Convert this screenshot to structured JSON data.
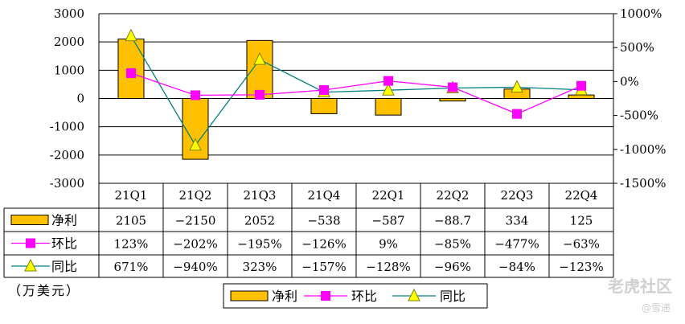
{
  "chart_data": {
    "type": "bar",
    "categories": [
      "21Q1",
      "21Q2",
      "21Q3",
      "21Q4",
      "22Q1",
      "22Q2",
      "22Q3",
      "22Q4"
    ],
    "ylim": [
      -3000,
      3000
    ],
    "y_ticks": [
      "3000",
      "2000",
      "1000",
      "0",
      "-1000",
      "-2000",
      "-3000"
    ],
    "y2lim": [
      -1500,
      1000
    ],
    "y2_ticks": [
      "1000%",
      "500%",
      "0%",
      "-500%",
      "-1000%",
      "-1500%"
    ],
    "grid": true,
    "legend_position": "bottom",
    "series": [
      {
        "name": "净利",
        "kind": "bar",
        "axis": "left",
        "color": "#FFC000",
        "values": [
          2105,
          -2150,
          2052,
          -538,
          -587,
          -88.7,
          334,
          125
        ]
      },
      {
        "name": "环比",
        "kind": "line",
        "axis": "right",
        "color": "#FF00FF",
        "marker": "square",
        "values": [
          123,
          -202,
          -195,
          -126,
          9,
          -85,
          -477,
          -63
        ]
      },
      {
        "name": "同比",
        "kind": "line",
        "axis": "right",
        "color": "#008080",
        "marker": "triangle",
        "marker_color": "#FFFF00",
        "values": [
          671,
          -940,
          323,
          -157,
          -128,
          -96,
          -84,
          -123
        ]
      }
    ],
    "table": [
      {
        "label": "净利",
        "cells": [
          "2105",
          "−2150",
          "2052",
          "−538",
          "−587",
          "−88.7",
          "334",
          "125"
        ]
      },
      {
        "label": "环比",
        "cells": [
          "123%",
          "−202%",
          "−195%",
          "−126%",
          "9%",
          "−85%",
          "−477%",
          "−63%"
        ]
      },
      {
        "label": "同比",
        "cells": [
          "671%",
          "−940%",
          "323%",
          "−157%",
          "−128%",
          "−96%",
          "−84%",
          "−123%"
        ]
      }
    ],
    "unit_label": "（万美元）"
  },
  "watermark": {
    "text": "老虎社区",
    "sub": "@雪递"
  }
}
